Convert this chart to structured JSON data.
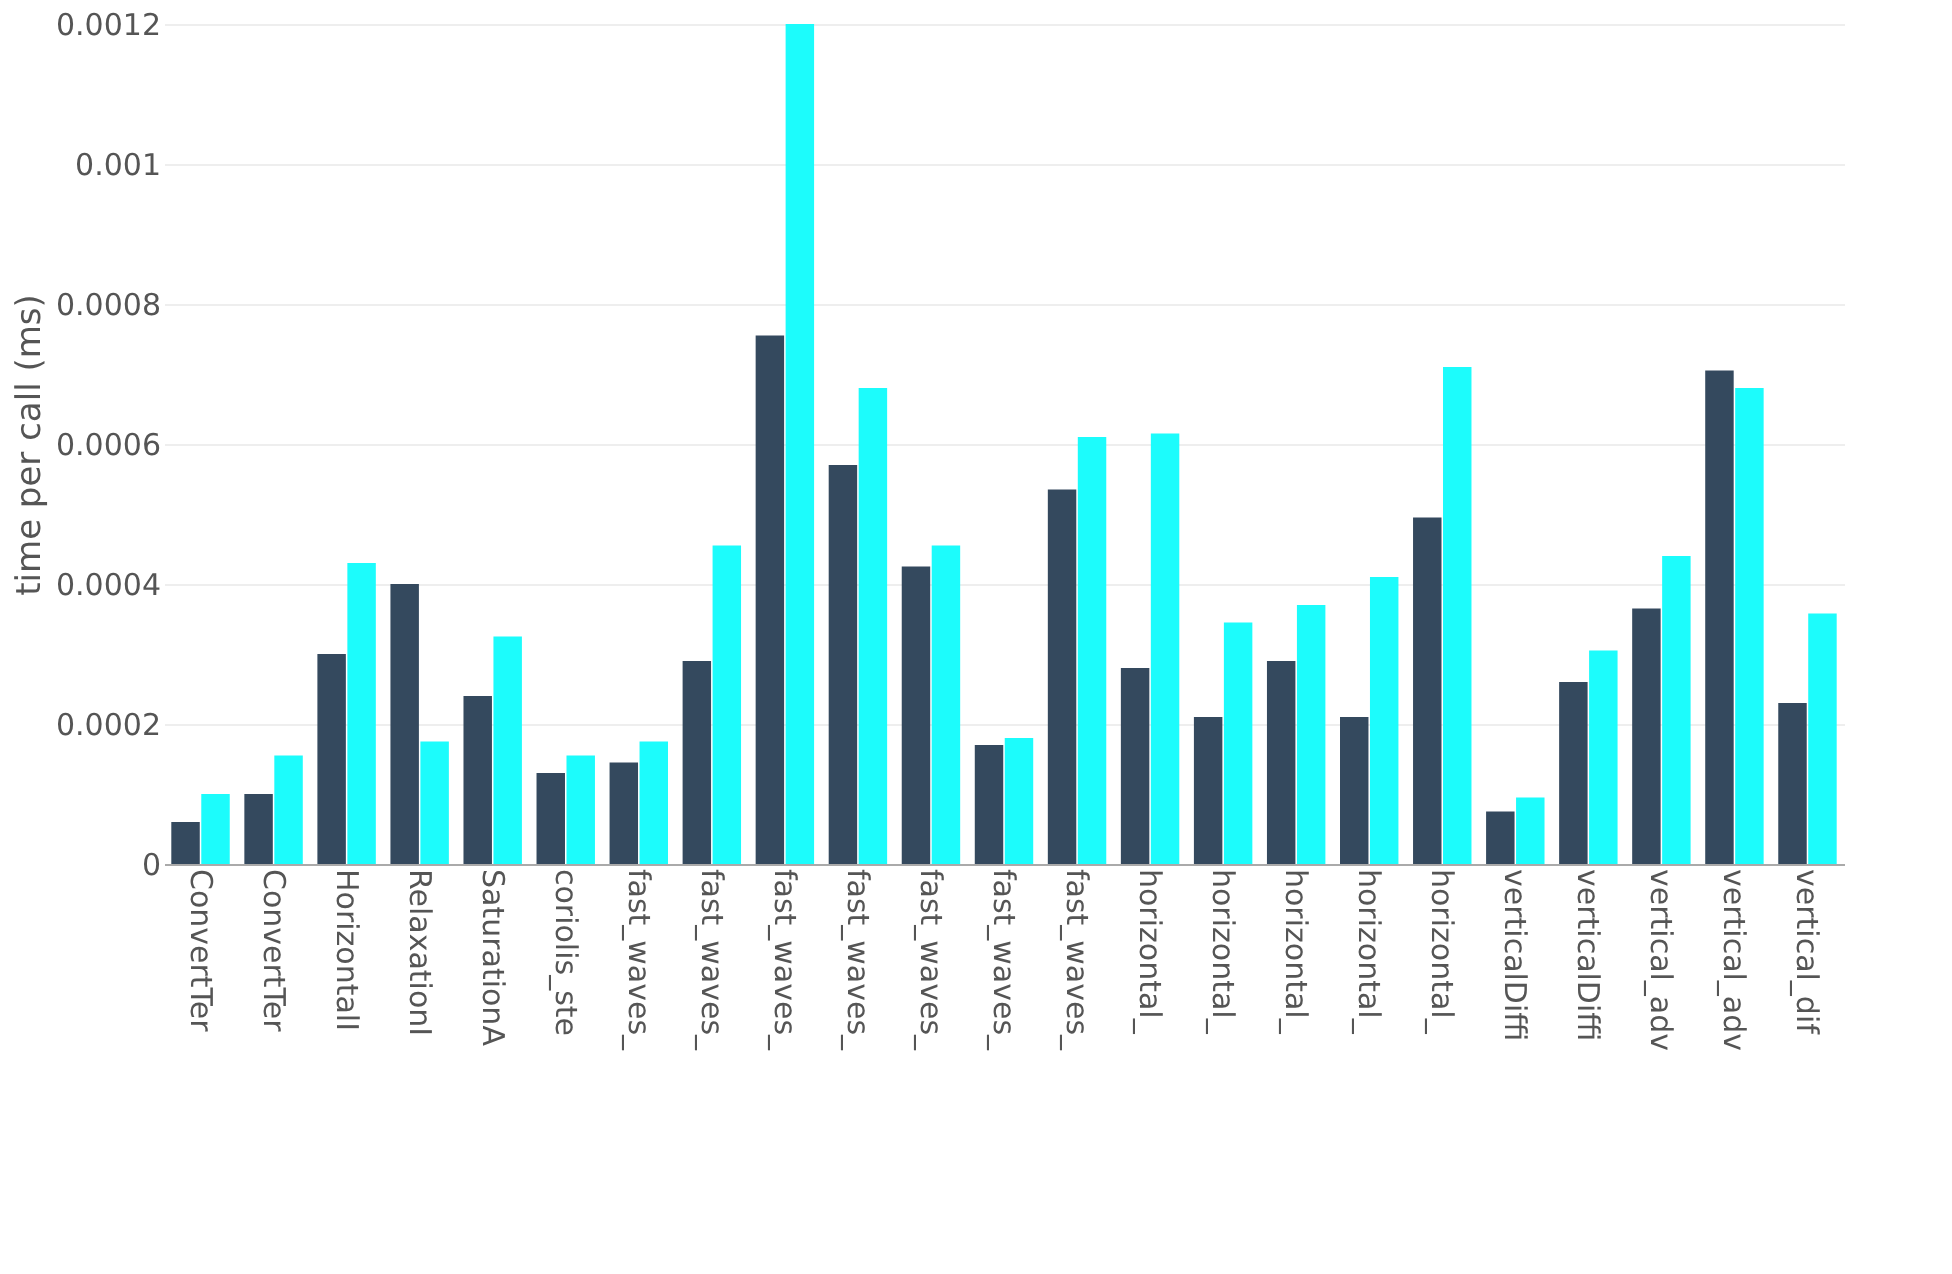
{
  "chart_data": {
    "type": "bar",
    "ylabel": "time per call (ms)",
    "categories": [
      "ConvertTer",
      "ConvertTer",
      "HorizontalI",
      "RelaxationI",
      "SaturationA",
      "coriolis_ste",
      "fast_waves_",
      "fast_waves_",
      "fast_waves_",
      "fast_waves_",
      "fast_waves_",
      "fast_waves_",
      "fast_waves_",
      "horizontal_",
      "horizontal_",
      "horizontal_",
      "horizontal_",
      "horizontal_",
      "verticalDiffi",
      "verticalDiffi",
      "vertical_adv",
      "vertical_adv",
      "vertical_dif"
    ],
    "series": [
      {
        "color": "#34495e",
        "values": [
          6e-05,
          0.0001,
          0.0003,
          0.0004,
          0.00024,
          0.00013,
          0.000145,
          0.00029,
          0.000755,
          0.00057,
          0.000425,
          0.00017,
          0.000535,
          0.00028,
          0.00021,
          0.00029,
          0.00021,
          0.000495,
          7.5e-05,
          0.00026,
          0.000365,
          0.000705,
          0.00023
        ]
      },
      {
        "color": "#1cfcfc",
        "values": [
          0.0001,
          0.000155,
          0.00043,
          0.000175,
          0.000325,
          0.000155,
          0.000175,
          0.000455,
          0.0012,
          0.00068,
          0.000455,
          0.00018,
          0.00061,
          0.000615,
          0.000345,
          0.00037,
          0.00041,
          0.00071,
          9.5e-05,
          0.000305,
          0.00044,
          0.00068,
          0.000358
        ]
      }
    ],
    "ylim": [
      0,
      0.0012
    ],
    "yticks": [
      0,
      0.0002,
      0.0004,
      0.0006,
      0.0008,
      0.001,
      0.0012
    ],
    "grid": "y",
    "legend": false
  }
}
